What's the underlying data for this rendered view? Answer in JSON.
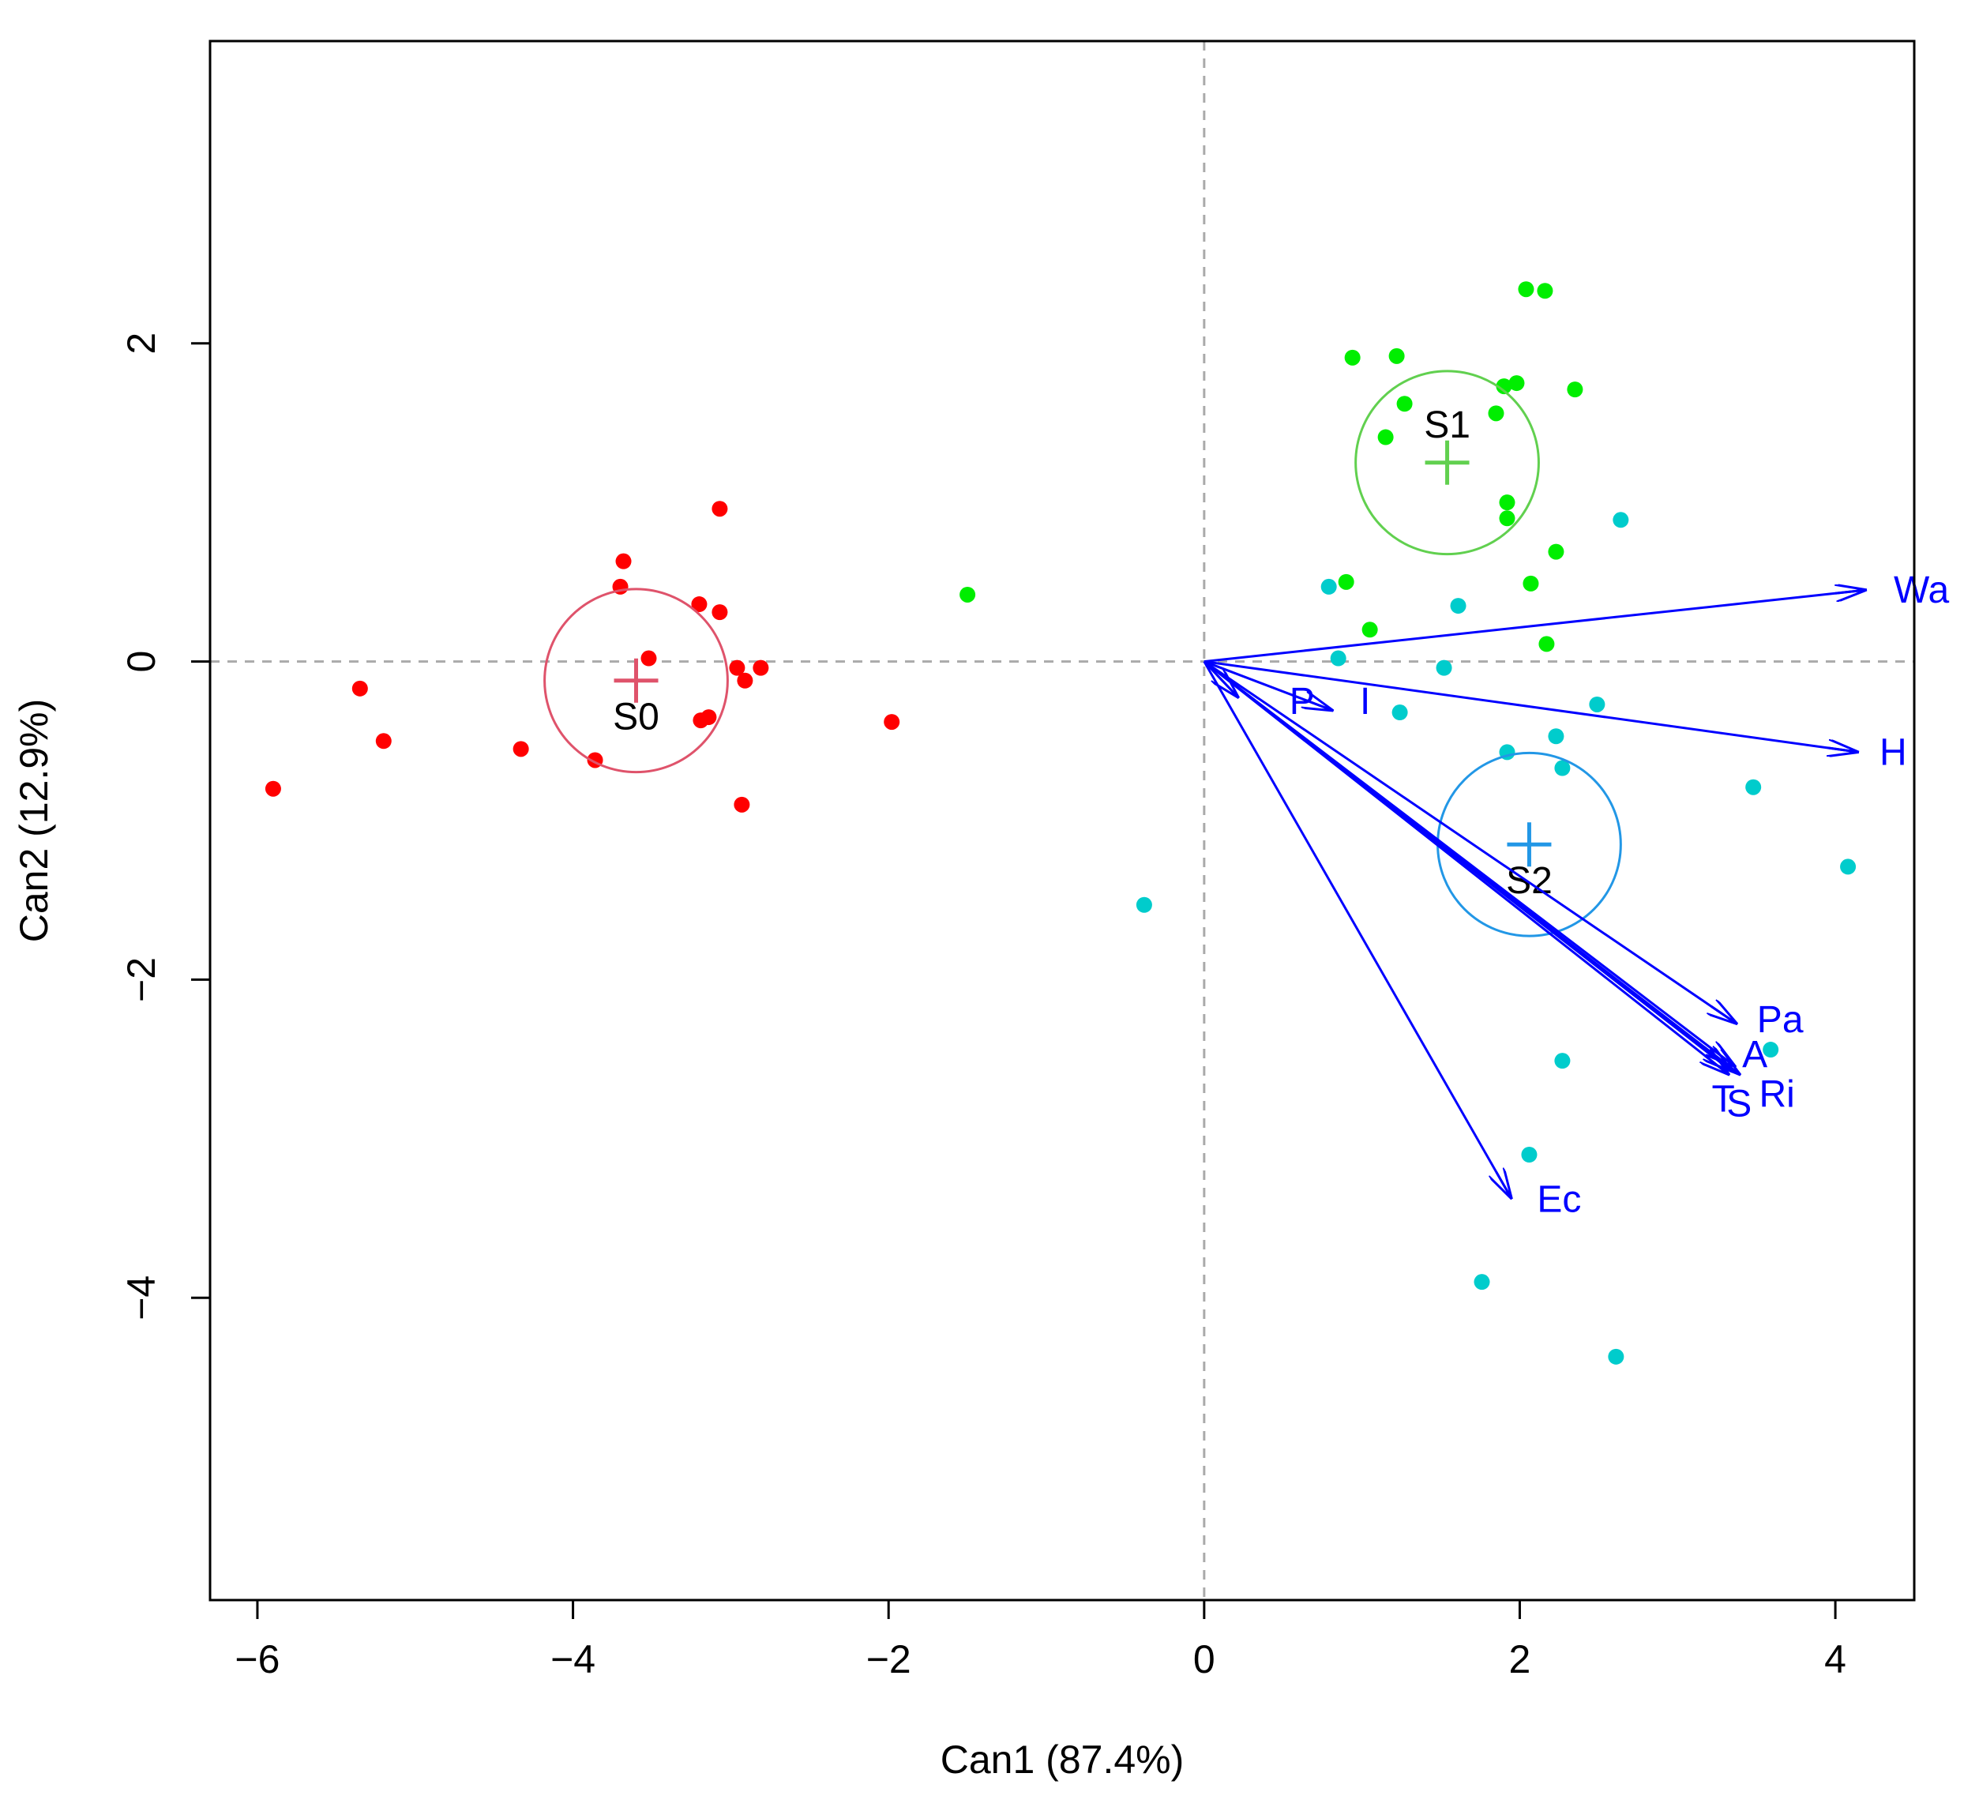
{
  "chart_data": {
    "type": "scatter",
    "title": "",
    "xlabel": "Can1 (87.4%)",
    "ylabel": "Can2 (12.9%)",
    "xlim": [
      -6.3,
      4.5
    ],
    "ylim": [
      -5.9,
      3.9
    ],
    "xticks": [
      -6,
      -4,
      -2,
      0,
      2,
      4
    ],
    "yticks": [
      -4,
      -2,
      0,
      2
    ],
    "xtick_labels": [
      "−6",
      "−4",
      "−2",
      "0",
      "2",
      "4"
    ],
    "ytick_labels": [
      "−4",
      "−2",
      "0",
      "2"
    ],
    "reference_lines": {
      "x": 0,
      "y": 0,
      "style": "dashed",
      "color": "#aaaaaa"
    },
    "series": [
      {
        "name": "S0",
        "color": "#ff0000",
        "centroid_color": "#df536b",
        "centroid": [
          -3.6,
          -0.12
        ],
        "radius": 0.58,
        "points": [
          [
            -5.9,
            -0.8
          ],
          [
            -5.35,
            -0.17
          ],
          [
            -5.2,
            -0.5
          ],
          [
            -4.33,
            -0.55
          ],
          [
            -3.86,
            -0.62
          ],
          [
            -3.7,
            0.47
          ],
          [
            -3.68,
            0.63
          ],
          [
            -3.52,
            0.02
          ],
          [
            -3.2,
            0.36
          ],
          [
            -3.19,
            -0.37
          ],
          [
            -3.14,
            -0.35
          ],
          [
            -3.07,
            0.31
          ],
          [
            -3.07,
            0.96
          ],
          [
            -2.96,
            -0.04
          ],
          [
            -2.91,
            -0.12
          ],
          [
            -2.93,
            -0.9
          ],
          [
            -2.81,
            -0.04
          ],
          [
            -1.98,
            -0.38
          ]
        ]
      },
      {
        "name": "S1",
        "color": "#00ee00",
        "centroid_color": "#61d04f",
        "centroid": [
          1.54,
          1.25
        ],
        "radius": 0.58,
        "points": [
          [
            -1.5,
            0.42
          ],
          [
            0.9,
            0.5
          ],
          [
            0.94,
            1.91
          ],
          [
            1.05,
            0.2
          ],
          [
            1.15,
            1.41
          ],
          [
            1.22,
            1.92
          ],
          [
            1.27,
            1.62
          ],
          [
            1.85,
            1.56
          ],
          [
            1.9,
            1.73
          ],
          [
            1.92,
            1.0
          ],
          [
            1.92,
            0.9
          ],
          [
            1.98,
            1.75
          ],
          [
            2.04,
            2.34
          ],
          [
            2.07,
            0.49
          ],
          [
            2.16,
            2.33
          ],
          [
            2.17,
            0.11
          ],
          [
            2.23,
            0.69
          ],
          [
            2.35,
            1.71
          ]
        ]
      },
      {
        "name": "S2",
        "color": "#00cccc",
        "centroid_color": "#2297e6",
        "centroid": [
          2.06,
          -1.15
        ],
        "radius": 0.58,
        "points": [
          [
            -0.38,
            -1.53
          ],
          [
            0.79,
            0.47
          ],
          [
            0.85,
            0.02
          ],
          [
            1.24,
            -0.32
          ],
          [
            1.52,
            -0.04
          ],
          [
            1.61,
            0.35
          ],
          [
            1.76,
            -3.9
          ],
          [
            1.92,
            -0.57
          ],
          [
            2.06,
            -3.1
          ],
          [
            2.23,
            -0.47
          ],
          [
            2.27,
            -0.67
          ],
          [
            2.27,
            -2.51
          ],
          [
            2.49,
            -0.27
          ],
          [
            2.61,
            -4.37
          ],
          [
            2.64,
            0.89
          ],
          [
            3.48,
            -0.79
          ],
          [
            3.59,
            -2.44
          ],
          [
            4.08,
            -1.29
          ]
        ]
      }
    ],
    "vectors": [
      {
        "label": "Wa",
        "end": [
          4.2,
          0.45
        ],
        "label_pos": [
          4.37,
          0.45
        ],
        "anchor": "start"
      },
      {
        "label": "H",
        "end": [
          4.15,
          -0.57
        ],
        "label_pos": [
          4.28,
          -0.57
        ],
        "anchor": "start"
      },
      {
        "label": "P",
        "end": [
          0.22,
          -0.23
        ],
        "label_pos": [
          0.62,
          -0.25
        ],
        "anchor": "middle"
      },
      {
        "label": "I",
        "end": [
          0.82,
          -0.31
        ],
        "label_pos": [
          1.02,
          -0.25
        ],
        "anchor": "middle"
      },
      {
        "label": "Pa",
        "end": [
          3.38,
          -2.28
        ],
        "label_pos": [
          3.65,
          -2.25
        ],
        "anchor": "middle"
      },
      {
        "label": "A",
        "end": [
          3.4,
          -2.6
        ],
        "label_pos": [
          3.49,
          -2.47
        ],
        "anchor": "middle"
      },
      {
        "label": "S",
        "end": [
          3.37,
          -2.55
        ],
        "label_pos": [
          3.39,
          -2.78
        ],
        "anchor": "middle"
      },
      {
        "label": "Ri",
        "end": [
          3.35,
          -2.58
        ],
        "label_pos": [
          3.63,
          -2.72
        ],
        "anchor": "middle"
      },
      {
        "label": "T",
        "end": [
          3.33,
          -2.6
        ],
        "label_pos": [
          3.29,
          -2.75
        ],
        "anchor": "middle"
      },
      {
        "label": "Ec",
        "end": [
          1.95,
          -3.38
        ],
        "label_pos": [
          2.25,
          -3.38
        ],
        "anchor": "middle"
      }
    ],
    "vector_color": "#0000ff"
  }
}
